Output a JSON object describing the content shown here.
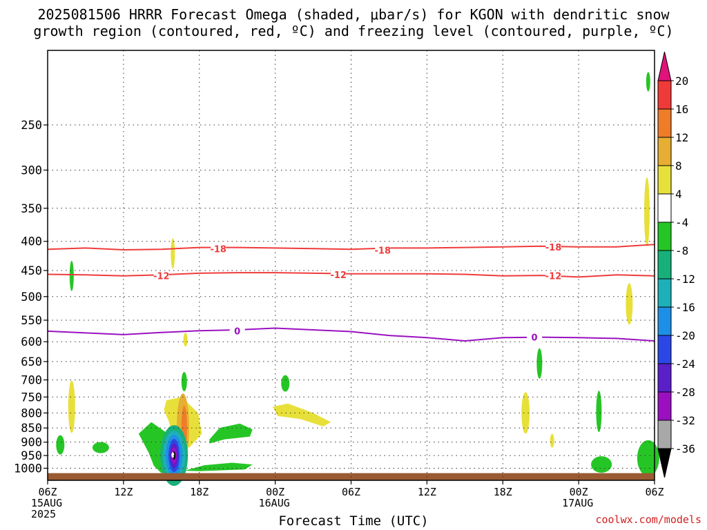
{
  "chart_data": {
    "type": "heatmap",
    "title_line1": "2025081506 HRRR Forecast Omega (shaded, μbar/s) for KGON with dendritic snow",
    "title_line2": "growth region (contoured, red, ºC) and freezing level (contoured, purple, ºC)",
    "xlabel": "Forecast Time (UTC)",
    "credit": "coolwx.com/models",
    "y_axis": {
      "scale": "log-pressure",
      "range": [
        1050,
        185
      ],
      "ticks": [
        "250",
        "300",
        "350",
        "400",
        "450",
        "500",
        "550",
        "600",
        "650",
        "700",
        "750",
        "800",
        "850",
        "900",
        "950",
        "1000"
      ],
      "tick_values": [
        250,
        300,
        350,
        400,
        450,
        500,
        550,
        600,
        650,
        700,
        750,
        800,
        850,
        900,
        950,
        1000
      ]
    },
    "x_axis": {
      "range_hours": [
        0,
        48
      ],
      "tick_labels": [
        {
          "hour": 0,
          "lines": [
            "06Z",
            "15AUG",
            "2025"
          ]
        },
        {
          "hour": 6,
          "lines": [
            "12Z"
          ]
        },
        {
          "hour": 12,
          "lines": [
            "18Z"
          ]
        },
        {
          "hour": 18,
          "lines": [
            "00Z",
            "16AUG"
          ]
        },
        {
          "hour": 24,
          "lines": [
            "06Z"
          ]
        },
        {
          "hour": 30,
          "lines": [
            "12Z"
          ]
        },
        {
          "hour": 36,
          "lines": [
            "18Z"
          ]
        },
        {
          "hour": 42,
          "lines": [
            "00Z",
            "17AUG"
          ]
        },
        {
          "hour": 48,
          "lines": [
            "06Z"
          ]
        }
      ]
    },
    "colorbar": {
      "labels": [
        "20",
        "16",
        "12",
        "8",
        "4",
        "-4",
        "-8",
        "-12",
        "-16",
        "-20",
        "-24",
        "-28",
        "-32",
        "-36"
      ],
      "colors": [
        "#e0137a",
        "#ef3a3a",
        "#ee7c28",
        "#e6ae33",
        "#e8e03a",
        "#ffffff",
        "#26c526",
        "#18b07a",
        "#1eb0b8",
        "#1e8fe6",
        "#2b48e6",
        "#5a1fc8",
        "#9a10c0",
        "#a8a8a8",
        "#000000"
      ]
    },
    "contours": [
      {
        "name": "-18",
        "color": "#ef3a3a",
        "points": [
          [
            0,
            413
          ],
          [
            3,
            411
          ],
          [
            6,
            414
          ],
          [
            9,
            413
          ],
          [
            12,
            410
          ],
          [
            15,
            410
          ],
          [
            18,
            411
          ],
          [
            21,
            412
          ],
          [
            24,
            413
          ],
          [
            27,
            411
          ],
          [
            30,
            411
          ],
          [
            33,
            410
          ],
          [
            36,
            409
          ],
          [
            39,
            408
          ],
          [
            42,
            409
          ],
          [
            45,
            409
          ],
          [
            48,
            405
          ]
        ],
        "labels": [
          [
            13.5,
            413
          ],
          [
            26.5,
            415
          ],
          [
            40,
            410
          ]
        ]
      },
      {
        "name": "-12",
        "color": "#ef3a3a",
        "points": [
          [
            0,
            457
          ],
          [
            3,
            458
          ],
          [
            6,
            460
          ],
          [
            9,
            458
          ],
          [
            12,
            455
          ],
          [
            15,
            454
          ],
          [
            18,
            454
          ],
          [
            21,
            455
          ],
          [
            24,
            456
          ],
          [
            27,
            456
          ],
          [
            30,
            456
          ],
          [
            33,
            457
          ],
          [
            36,
            460
          ],
          [
            39,
            459
          ],
          [
            42,
            462
          ],
          [
            45,
            458
          ],
          [
            48,
            460
          ]
        ],
        "labels": [
          [
            9,
            460
          ],
          [
            23,
            458
          ],
          [
            40,
            460
          ]
        ]
      },
      {
        "name": "0",
        "color": "#9a10c0",
        "points": [
          [
            0,
            575
          ],
          [
            3,
            579
          ],
          [
            6,
            583
          ],
          [
            9,
            578
          ],
          [
            12,
            574
          ],
          [
            15,
            572
          ],
          [
            18,
            568
          ],
          [
            21,
            572
          ],
          [
            24,
            576
          ],
          [
            27,
            585
          ],
          [
            30,
            590
          ],
          [
            33,
            598
          ],
          [
            36,
            590
          ],
          [
            39,
            589
          ],
          [
            42,
            590
          ],
          [
            45,
            592
          ],
          [
            48,
            598
          ]
        ],
        "labels": [
          [
            15,
            575
          ],
          [
            38.5,
            590
          ]
        ]
      }
    ],
    "omega_regions": [
      {
        "name": "ascent core",
        "hour": 10,
        "pres": 950,
        "min_value": -36,
        "max_value": -4
      },
      {
        "name": "descent band",
        "hour": 10.6,
        "pres": 790,
        "max_value": 14
      }
    ],
    "ground_level_hpa": 1020
  }
}
